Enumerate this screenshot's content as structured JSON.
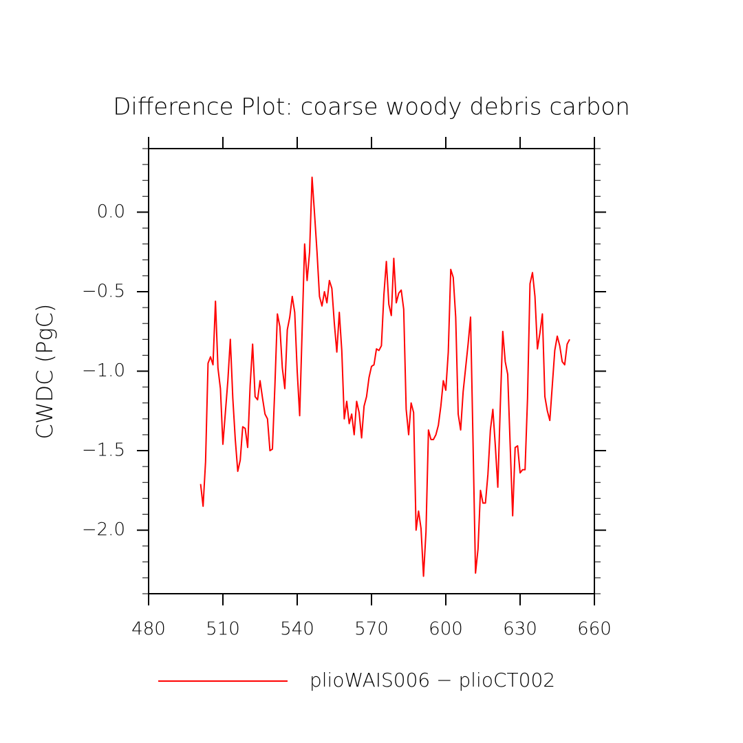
{
  "chart_data": {
    "type": "line",
    "title": "Difference Plot: coarse woody debris carbon",
    "y_label": "CWDC  (PgC)",
    "x": [
      501,
      502,
      503,
      504,
      505,
      506,
      507,
      508,
      509,
      510,
      511,
      512,
      513,
      514,
      515,
      516,
      517,
      518,
      519,
      520,
      521,
      522,
      523,
      524,
      525,
      526,
      527,
      528,
      529,
      530,
      531,
      532,
      533,
      534,
      535,
      536,
      537,
      538,
      539,
      540,
      541,
      542,
      543,
      544,
      545,
      546,
      547,
      548,
      549,
      550,
      551,
      552,
      553,
      554,
      555,
      556,
      557,
      558,
      559,
      560,
      561,
      562,
      563,
      564,
      565,
      566,
      567,
      568,
      569,
      570,
      571,
      572,
      573,
      574,
      575,
      576,
      577,
      578,
      579,
      580,
      581,
      582,
      583,
      584,
      585,
      586,
      587,
      588,
      589,
      590,
      591,
      592,
      593,
      594,
      595,
      596,
      597,
      598,
      599,
      600,
      601,
      602,
      603,
      604,
      605,
      606,
      607,
      608,
      609,
      610,
      611,
      612,
      613,
      614,
      615,
      616,
      617,
      618,
      619,
      620,
      621,
      622,
      623,
      624,
      625,
      626,
      627,
      628,
      629,
      630,
      631,
      632,
      633,
      634,
      635,
      636,
      637,
      638,
      639,
      640,
      641,
      642,
      643,
      644,
      645,
      646,
      647,
      648,
      649,
      650
    ],
    "series": [
      {
        "name": "plioWAIS006 − plioCT002",
        "color": "#ff0000",
        "values": [
          -1.71,
          -1.85,
          -1.57,
          -0.95,
          -0.91,
          -0.96,
          -0.56,
          -0.98,
          -1.11,
          -1.46,
          -1.26,
          -1.06,
          -0.8,
          -1.17,
          -1.43,
          -1.63,
          -1.56,
          -1.35,
          -1.36,
          -1.48,
          -1.09,
          -0.83,
          -1.16,
          -1.18,
          -1.06,
          -1.17,
          -1.27,
          -1.3,
          -1.5,
          -1.49,
          -1.09,
          -0.64,
          -0.72,
          -0.98,
          -1.11,
          -0.74,
          -0.66,
          -0.53,
          -0.63,
          -1.0,
          -1.28,
          -0.74,
          -0.2,
          -0.43,
          -0.25,
          0.22,
          -0.01,
          -0.25,
          -0.53,
          -0.59,
          -0.5,
          -0.57,
          -0.43,
          -0.48,
          -0.7,
          -0.88,
          -0.63,
          -0.87,
          -1.3,
          -1.19,
          -1.33,
          -1.27,
          -1.4,
          -1.19,
          -1.26,
          -1.42,
          -1.22,
          -1.16,
          -1.04,
          -0.97,
          -0.96,
          -0.86,
          -0.87,
          -0.84,
          -0.52,
          -0.31,
          -0.58,
          -0.65,
          -0.29,
          -0.57,
          -0.51,
          -0.49,
          -0.61,
          -1.24,
          -1.4,
          -1.2,
          -1.26,
          -2.0,
          -1.88,
          -1.99,
          -2.29,
          -2.01,
          -1.37,
          -1.43,
          -1.43,
          -1.4,
          -1.34,
          -1.22,
          -1.06,
          -1.12,
          -0.88,
          -0.36,
          -0.41,
          -0.66,
          -1.27,
          -1.37,
          -1.13,
          -0.98,
          -0.83,
          -0.66,
          -1.45,
          -2.27,
          -2.12,
          -1.75,
          -1.83,
          -1.83,
          -1.65,
          -1.37,
          -1.24,
          -1.47,
          -1.73,
          -1.22,
          -0.75,
          -0.94,
          -1.02,
          -1.47,
          -1.91,
          -1.48,
          -1.47,
          -1.64,
          -1.62,
          -1.62,
          -1.17,
          -0.45,
          -0.38,
          -0.53,
          -0.86,
          -0.76,
          -0.64,
          -1.16,
          -1.25,
          -1.31,
          -1.09,
          -0.87,
          -0.78,
          -0.84,
          -0.94,
          -0.96,
          -0.83,
          -0.8
        ]
      }
    ],
    "xlim": [
      480,
      660
    ],
    "xticks": [
      480,
      510,
      540,
      570,
      600,
      630,
      660
    ],
    "ylim": [
      -2.4,
      0.4
    ],
    "yticks": [
      {
        "value": -2,
        "label": "−2.0"
      },
      {
        "value": -1.5,
        "label": "−1.5"
      },
      {
        "value": -1,
        "label": "−1.0"
      },
      {
        "value": -0.5,
        "label": "−0.5"
      },
      {
        "value": 0,
        "label": "0.0"
      }
    ],
    "grid": false
  }
}
